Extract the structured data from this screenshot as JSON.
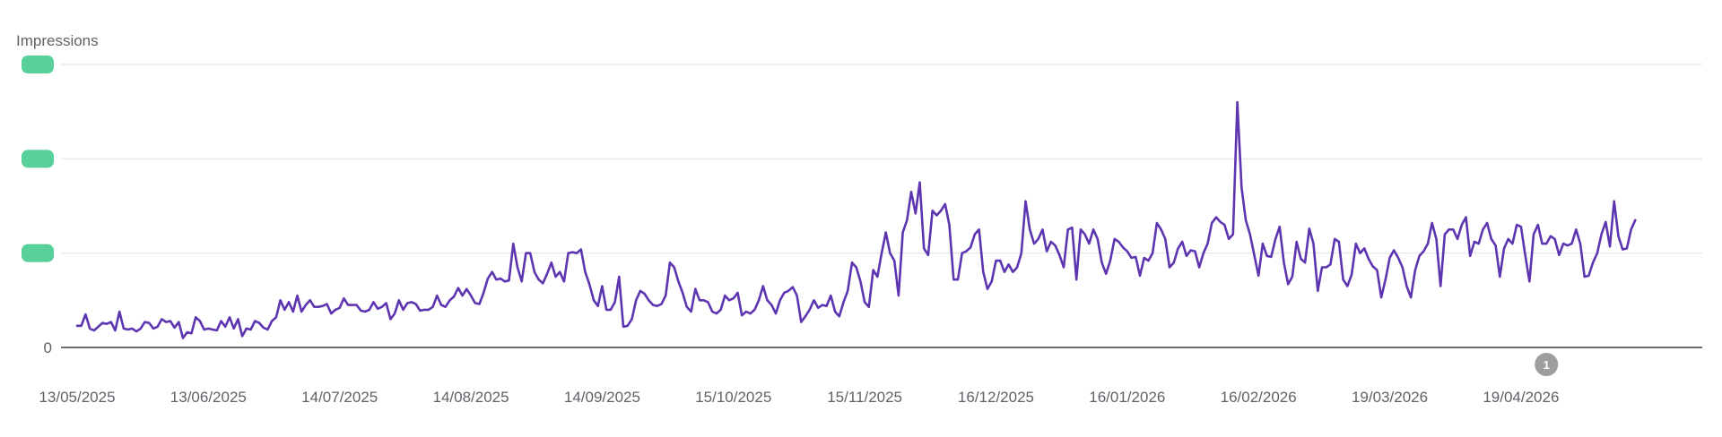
{
  "chart_data": {
    "type": "line",
    "ylabel": "Impressions",
    "y_tick_labels": [
      "0",
      "",
      "",
      ""
    ],
    "y_tick_values": [
      0,
      1,
      2,
      3
    ],
    "ylim": [
      0,
      3
    ],
    "x_tick_labels": [
      "13/05/2025",
      "13/06/2025",
      "14/07/2025",
      "14/08/2025",
      "14/09/2025",
      "15/10/2025",
      "15/11/2025",
      "16/12/2025",
      "16/01/2026",
      "16/02/2026",
      "19/03/2026",
      "19/04/2026"
    ],
    "x_start": "13/05/2025",
    "x_end": "28/05/2026",
    "grid": true,
    "series_color": "#5e35b1",
    "hidden_label_color": "#57d09a",
    "annotation_color": "#9e9e9e",
    "annotations": [
      {
        "date": "25/04/2026",
        "label": "1"
      }
    ],
    "series": [
      {
        "values": [
          0.23,
          0.23,
          0.35,
          0.2,
          0.18,
          0.22,
          0.26,
          0.25,
          0.27,
          0.18,
          0.38,
          0.2,
          0.19,
          0.2,
          0.17,
          0.2,
          0.27,
          0.26,
          0.2,
          0.22,
          0.3,
          0.27,
          0.28,
          0.21,
          0.27,
          0.1,
          0.16,
          0.15,
          0.32,
          0.28,
          0.19,
          0.2,
          0.19,
          0.18,
          0.28,
          0.22,
          0.32,
          0.2,
          0.3,
          0.12,
          0.2,
          0.19,
          0.28,
          0.26,
          0.21,
          0.19,
          0.28,
          0.32,
          0.5,
          0.4,
          0.48,
          0.38,
          0.55,
          0.38,
          0.45,
          0.5,
          0.43,
          0.43,
          0.44,
          0.46,
          0.36,
          0.4,
          0.42,
          0.52,
          0.45,
          0.45,
          0.45,
          0.39,
          0.38,
          0.4,
          0.48,
          0.41,
          0.43,
          0.47,
          0.3,
          0.36,
          0.5,
          0.4,
          0.47,
          0.48,
          0.46,
          0.39,
          0.4,
          0.4,
          0.43,
          0.55,
          0.45,
          0.43,
          0.5,
          0.54,
          0.63,
          0.55,
          0.62,
          0.55,
          0.47,
          0.46,
          0.58,
          0.73,
          0.8,
          0.72,
          0.73,
          0.7,
          0.71,
          1.1,
          0.85,
          0.7,
          1.0,
          1.0,
          0.8,
          0.72,
          0.68,
          0.78,
          0.9,
          0.75,
          0.8,
          0.7,
          1.0,
          1.01,
          1.0,
          1.04,
          0.8,
          0.67,
          0.5,
          0.44,
          0.65,
          0.4,
          0.4,
          0.48,
          0.75,
          0.22,
          0.23,
          0.3,
          0.5,
          0.6,
          0.57,
          0.5,
          0.45,
          0.44,
          0.46,
          0.55,
          0.9,
          0.85,
          0.7,
          0.58,
          0.43,
          0.38,
          0.62,
          0.5,
          0.5,
          0.48,
          0.38,
          0.36,
          0.4,
          0.55,
          0.5,
          0.52,
          0.58,
          0.34,
          0.38,
          0.36,
          0.4,
          0.5,
          0.65,
          0.5,
          0.45,
          0.36,
          0.5,
          0.58,
          0.6,
          0.64,
          0.55,
          0.27,
          0.33,
          0.4,
          0.5,
          0.42,
          0.45,
          0.44,
          0.55,
          0.38,
          0.33,
          0.48,
          0.6,
          0.9,
          0.85,
          0.7,
          0.48,
          0.43,
          0.82,
          0.75,
          1.0,
          1.22,
          1.0,
          0.92,
          0.55,
          1.22,
          1.35,
          1.65,
          1.42,
          1.75,
          1.05,
          0.98,
          1.45,
          1.4,
          1.45,
          1.52,
          1.3,
          0.72,
          0.72,
          1.0,
          1.02,
          1.06,
          1.2,
          1.25,
          0.8,
          0.62,
          0.7,
          0.92,
          0.92,
          0.8,
          0.88,
          0.8,
          0.85,
          1.0,
          1.55,
          1.25,
          1.1,
          1.15,
          1.25,
          1.02,
          1.12,
          1.08,
          0.98,
          0.85,
          1.25,
          1.27,
          0.72,
          1.25,
          1.2,
          1.1,
          1.25,
          1.15,
          0.9,
          0.78,
          0.92,
          1.15,
          1.12,
          1.06,
          1.02,
          0.95,
          0.96,
          0.76,
          0.95,
          0.92,
          1.0,
          1.32,
          1.25,
          1.15,
          0.85,
          0.9,
          1.05,
          1.12,
          0.97,
          1.03,
          1.02,
          0.85,
          1.0,
          1.1,
          1.32,
          1.38,
          1.33,
          1.3,
          1.15,
          1.2,
          2.6,
          1.7,
          1.35,
          1.2,
          0.98,
          0.76,
          1.1,
          0.97,
          0.96,
          1.15,
          1.28,
          0.9,
          0.67,
          0.75,
          1.12,
          0.94,
          0.9,
          1.26,
          1.1,
          0.6,
          0.85,
          0.85,
          0.88,
          1.15,
          1.12,
          0.72,
          0.65,
          0.77,
          1.1,
          1.0,
          1.05,
          0.94,
          0.86,
          0.82,
          0.53,
          0.72,
          0.95,
          1.03,
          0.95,
          0.85,
          0.65,
          0.53,
          0.82,
          0.97,
          1.02,
          1.1,
          1.32,
          1.15,
          0.65,
          1.2,
          1.25,
          1.25,
          1.15,
          1.3,
          1.38,
          0.97,
          1.12,
          1.1,
          1.25,
          1.32,
          1.15,
          1.08,
          0.75,
          1.05,
          1.15,
          1.1,
          1.3,
          1.28,
          0.98,
          0.7,
          1.2,
          1.3,
          1.1,
          1.1,
          1.18,
          1.15,
          0.98,
          1.1,
          1.08,
          1.1,
          1.25,
          1.1,
          0.75,
          0.76,
          0.9,
          1.0,
          1.2,
          1.33,
          1.07,
          1.55,
          1.18,
          1.04,
          1.05,
          1.25,
          1.35
        ]
      }
    ]
  }
}
